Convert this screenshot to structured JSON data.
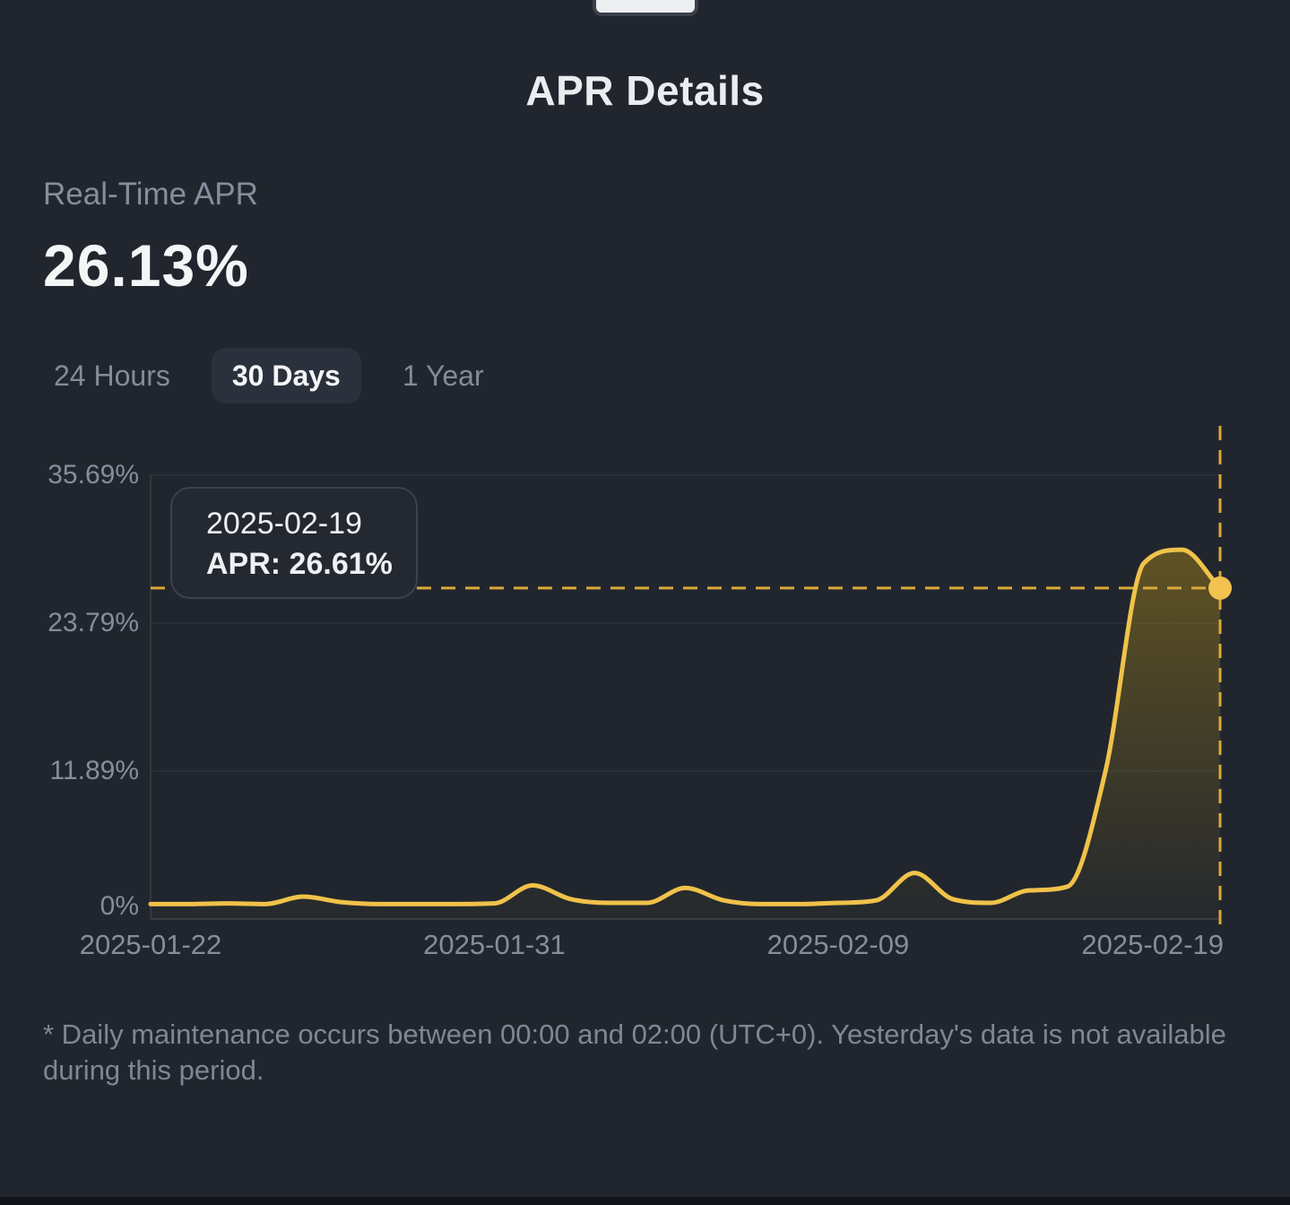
{
  "title": "APR Details",
  "realtime": {
    "label": "Real-Time APR",
    "value": "26.13%"
  },
  "tabs": [
    {
      "label": "24 Hours",
      "active": false
    },
    {
      "label": "30 Days",
      "active": true
    },
    {
      "label": "1 Year",
      "active": false
    }
  ],
  "chart_data": {
    "type": "area",
    "title": "",
    "xlabel": "",
    "ylabel": "",
    "ylim": [
      0,
      35.69
    ],
    "grid": true,
    "legend": false,
    "x": [
      "2025-01-22",
      "2025-01-23",
      "2025-01-24",
      "2025-01-25",
      "2025-01-26",
      "2025-01-27",
      "2025-01-28",
      "2025-01-29",
      "2025-01-30",
      "2025-01-31",
      "2025-02-01",
      "2025-02-02",
      "2025-02-03",
      "2025-02-04",
      "2025-02-05",
      "2025-02-06",
      "2025-02-07",
      "2025-02-08",
      "2025-02-09",
      "2025-02-10",
      "2025-02-11",
      "2025-02-12",
      "2025-02-13",
      "2025-02-14",
      "2025-02-15",
      "2025-02-16",
      "2025-02-17",
      "2025-02-18",
      "2025-02-19"
    ],
    "values": [
      1.2,
      1.2,
      1.25,
      1.2,
      1.8,
      1.35,
      1.2,
      1.2,
      1.2,
      1.25,
      2.7,
      1.6,
      1.3,
      1.3,
      2.5,
      1.5,
      1.2,
      1.2,
      1.3,
      1.5,
      3.7,
      1.6,
      1.3,
      2.3,
      2.6,
      11.9,
      28.6,
      29.7,
      26.61
    ],
    "y_ticks": [
      {
        "label": "35.69%",
        "value": 35.69,
        "dy": 0
      },
      {
        "label": "23.79%",
        "value": 23.79,
        "dy": 0
      },
      {
        "label": "11.89%",
        "value": 11.89,
        "dy": 0
      },
      {
        "label": "0%",
        "value": 0,
        "dy": -14
      }
    ],
    "x_ticks": [
      {
        "label": "2025-01-22",
        "index": 0,
        "align": "center"
      },
      {
        "label": "2025-01-31",
        "index": 9,
        "align": "center"
      },
      {
        "label": "2025-02-09",
        "index": 18,
        "align": "center"
      },
      {
        "label": "2025-02-19",
        "index": 28,
        "align": "right"
      }
    ],
    "tooltip": {
      "date": "2025-02-19",
      "apr_text": "APR: 26.61%"
    },
    "crosshair": {
      "value": 26.61,
      "index": 28
    },
    "colors": {
      "line": "#f0c24a",
      "dot": "#f1c24f",
      "crosshair": "#d9a93a",
      "fill_top": "rgba(240,185,11,0.30)",
      "fill_bottom": "rgba(240,185,11,0.02)"
    }
  },
  "footnote": "* Daily maintenance occurs between 00:00 and 02:00 (UTC+0). Yesterday's data is not available during this period.",
  "colors": {
    "background": "#21262e",
    "text_primary": "#eaecef",
    "text_secondary": "#848e9c",
    "pill_background": "#2b313c",
    "accent_yellow": "#f0b90b"
  }
}
